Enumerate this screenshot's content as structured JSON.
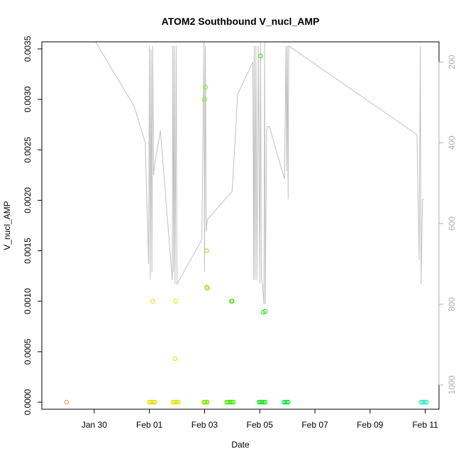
{
  "chart_data": {
    "type": "scatter",
    "title": "ATOM2 Southbound V_nucl_AMP",
    "xlabel": "Date",
    "ylabel": "V_nucl_AMP",
    "x_unit": "days since Jan 28",
    "xlim": [
      28.1,
      42.5
    ],
    "ylim": [
      -7e-05,
      0.00357
    ],
    "x_ticks": [
      {
        "value": 30,
        "label": "Jan 30"
      },
      {
        "value": 32,
        "label": "Feb 01"
      },
      {
        "value": 34,
        "label": "Feb 03"
      },
      {
        "value": 36,
        "label": "Feb 05"
      },
      {
        "value": 38,
        "label": "Feb 07"
      },
      {
        "value": 40,
        "label": "Feb 09"
      },
      {
        "value": 42,
        "label": "Feb 11"
      }
    ],
    "y_ticks": [
      {
        "value": 0,
        "label": "0.0000"
      },
      {
        "value": 0.0005,
        "label": "0.0005"
      },
      {
        "value": 0.001,
        "label": "0.0010"
      },
      {
        "value": 0.0015,
        "label": "0.0015"
      },
      {
        "value": 0.002,
        "label": "0.0020"
      },
      {
        "value": 0.0025,
        "label": "0.0025"
      },
      {
        "value": 0.003,
        "label": "0.0030"
      },
      {
        "value": 0.0035,
        "label": "0.0035"
      }
    ],
    "right_axis": {
      "color": "#b0b0b0",
      "ylim": [
        1060,
        150
      ],
      "ticks": [
        {
          "value": 200,
          "label": "200"
        },
        {
          "value": 400,
          "label": "400"
        },
        {
          "value": 600,
          "label": "600"
        },
        {
          "value": 800,
          "label": "800"
        },
        {
          "value": 1000,
          "label": "1000"
        }
      ]
    },
    "points": [
      {
        "x": 29.0,
        "y": 0,
        "color": "#e89a50"
      },
      {
        "x": 32.0,
        "y": 0,
        "color": "#e0e000"
      },
      {
        "x": 32.05,
        "y": 0,
        "color": "#e0e000"
      },
      {
        "x": 32.1,
        "y": 0,
        "color": "#e0e000"
      },
      {
        "x": 32.15,
        "y": 0,
        "color": "#e0e000"
      },
      {
        "x": 32.2,
        "y": 0,
        "color": "#e0e000"
      },
      {
        "x": 32.12,
        "y": 0.001,
        "color": "#e0e000"
      },
      {
        "x": 32.85,
        "y": 0,
        "color": "#d8e800"
      },
      {
        "x": 32.9,
        "y": 0,
        "color": "#d8e800"
      },
      {
        "x": 32.95,
        "y": 0,
        "color": "#d8e800"
      },
      {
        "x": 33.0,
        "y": 0,
        "color": "#d8e800"
      },
      {
        "x": 33.05,
        "y": 0,
        "color": "#d8e800"
      },
      {
        "x": 32.95,
        "y": 0.001,
        "color": "#d8e800"
      },
      {
        "x": 32.93,
        "y": 0.00043,
        "color": "#d8e800"
      },
      {
        "x": 33.98,
        "y": 0,
        "color": "#80e800"
      },
      {
        "x": 34.02,
        "y": 0,
        "color": "#80e800"
      },
      {
        "x": 34.06,
        "y": 0,
        "color": "#80e800"
      },
      {
        "x": 34.1,
        "y": 0,
        "color": "#80e800"
      },
      {
        "x": 34.0,
        "y": 0.003,
        "color": "#80e800"
      },
      {
        "x": 34.03,
        "y": 0.00312,
        "color": "#80e800"
      },
      {
        "x": 34.07,
        "y": 0.0015,
        "color": "#80e800"
      },
      {
        "x": 34.08,
        "y": 0.00114,
        "color": "#80e800"
      },
      {
        "x": 34.1,
        "y": 0.00113,
        "color": "#80e800"
      },
      {
        "x": 34.8,
        "y": 0,
        "color": "#40e800"
      },
      {
        "x": 34.85,
        "y": 0,
        "color": "#40e800"
      },
      {
        "x": 34.9,
        "y": 0,
        "color": "#40e800"
      },
      {
        "x": 34.95,
        "y": 0,
        "color": "#40e800"
      },
      {
        "x": 35.0,
        "y": 0,
        "color": "#40e800"
      },
      {
        "x": 35.05,
        "y": 0,
        "color": "#40e800"
      },
      {
        "x": 34.97,
        "y": 0.001,
        "color": "#40e800"
      },
      {
        "x": 35.0,
        "y": 0.001,
        "color": "#40e800"
      },
      {
        "x": 35.98,
        "y": 0,
        "color": "#20e020"
      },
      {
        "x": 36.02,
        "y": 0,
        "color": "#20e020"
      },
      {
        "x": 36.06,
        "y": 0,
        "color": "#20e020"
      },
      {
        "x": 36.1,
        "y": 0,
        "color": "#20e020"
      },
      {
        "x": 36.15,
        "y": 0,
        "color": "#20e020"
      },
      {
        "x": 36.2,
        "y": 0,
        "color": "#20e020"
      },
      {
        "x": 36.03,
        "y": 0.00343,
        "color": "#20e020"
      },
      {
        "x": 36.12,
        "y": 0.00089,
        "color": "#20e020"
      },
      {
        "x": 36.2,
        "y": 0.0009,
        "color": "#20e020"
      },
      {
        "x": 36.88,
        "y": 0,
        "color": "#00e040"
      },
      {
        "x": 36.93,
        "y": 0,
        "color": "#00e040"
      },
      {
        "x": 36.98,
        "y": 0,
        "color": "#00e040"
      },
      {
        "x": 37.03,
        "y": 0,
        "color": "#00e040"
      },
      {
        "x": 41.85,
        "y": 0,
        "color": "#30e8c0"
      },
      {
        "x": 41.9,
        "y": 0,
        "color": "#30e8c0"
      },
      {
        "x": 41.95,
        "y": 0,
        "color": "#30e8c0"
      },
      {
        "x": 42.0,
        "y": 0,
        "color": "#30e8c0"
      },
      {
        "x": 42.05,
        "y": 0,
        "color": "#30e8c0"
      }
    ],
    "line_series": {
      "color": "#c0c0c0",
      "points": [
        [
          30.05,
          150
        ],
        [
          31.45,
          310
        ],
        [
          31.85,
          400
        ],
        [
          31.97,
          700
        ],
        [
          32.0,
          160
        ],
        [
          32.03,
          740
        ],
        [
          32.06,
          170
        ],
        [
          32.09,
          720
        ],
        [
          32.12,
          160
        ],
        [
          32.15,
          480
        ],
        [
          32.2,
          450
        ],
        [
          32.4,
          370
        ],
        [
          32.83,
          740
        ],
        [
          32.85,
          160
        ],
        [
          32.88,
          720
        ],
        [
          32.9,
          160
        ],
        [
          32.93,
          750
        ],
        [
          32.97,
          160
        ],
        [
          33.0,
          750
        ],
        [
          33.9,
          640
        ],
        [
          33.98,
          150
        ],
        [
          34.0,
          720
        ],
        [
          34.03,
          160
        ],
        [
          34.06,
          620
        ],
        [
          34.1,
          590
        ],
        [
          35.0,
          520
        ],
        [
          35.2,
          280
        ],
        [
          35.75,
          200
        ],
        [
          35.78,
          740
        ],
        [
          35.8,
          160
        ],
        [
          35.83,
          740
        ],
        [
          35.86,
          160
        ],
        [
          35.9,
          740
        ],
        [
          35.95,
          160
        ],
        [
          36.0,
          750
        ],
        [
          36.03,
          150
        ],
        [
          36.06,
          740
        ],
        [
          36.1,
          750
        ],
        [
          36.15,
          800
        ],
        [
          36.18,
          150
        ],
        [
          36.2,
          800
        ],
        [
          36.25,
          370
        ],
        [
          36.28,
          360
        ],
        [
          36.35,
          360
        ],
        [
          36.9,
          490
        ],
        [
          36.95,
          160
        ],
        [
          36.98,
          470
        ],
        [
          37.0,
          160
        ],
        [
          37.03,
          540
        ],
        [
          37.05,
          160
        ],
        [
          41.7,
          380
        ],
        [
          41.78,
          690
        ],
        [
          41.82,
          160
        ],
        [
          41.85,
          750
        ],
        [
          41.9,
          540
        ],
        [
          41.95,
          540
        ]
      ]
    }
  }
}
